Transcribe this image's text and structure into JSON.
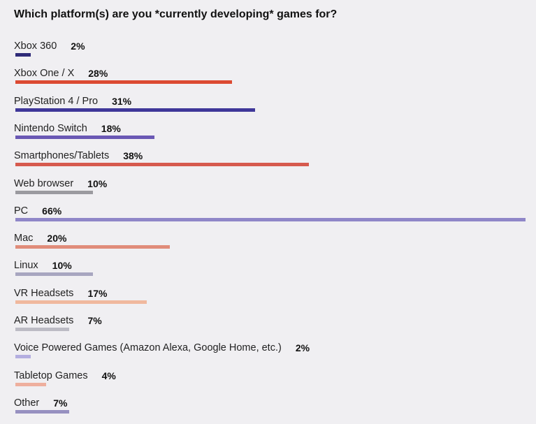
{
  "chart_data": {
    "type": "bar",
    "orientation": "horizontal",
    "title": "Which platform(s) are you *currently developing* games for?",
    "xlabel": "",
    "ylabel": "",
    "xlim": [
      0,
      66
    ],
    "grid": false,
    "legend": "none",
    "categories": [
      "Xbox 360",
      "Xbox One / X",
      "PlayStation 4 / Pro",
      "Nintendo Switch",
      "Smartphones/Tablets",
      "Web browser",
      "PC",
      "Mac",
      "Linux",
      "VR Headsets",
      "AR Headsets",
      "Voice Powered Games (Amazon Alexa, Google Home, etc.)",
      "Tabletop Games",
      "Other"
    ],
    "values": [
      2,
      28,
      31,
      18,
      38,
      10,
      66,
      20,
      10,
      17,
      7,
      2,
      4,
      7
    ],
    "value_labels": [
      "2%",
      "28%",
      "31%",
      "18%",
      "38%",
      "10%",
      "66%",
      "20%",
      "10%",
      "17%",
      "7%",
      "2%",
      "4%",
      "7%"
    ],
    "colors": [
      "#2e2a78",
      "#dc4a32",
      "#3f3799",
      "#6a58b4",
      "#d65a4e",
      "#9b9a9f",
      "#8f86c8",
      "#e08c7a",
      "#a8a6c0",
      "#f0b89e",
      "#bcbbc4",
      "#b4aee0",
      "#eeaf9e",
      "#9790c0"
    ]
  }
}
